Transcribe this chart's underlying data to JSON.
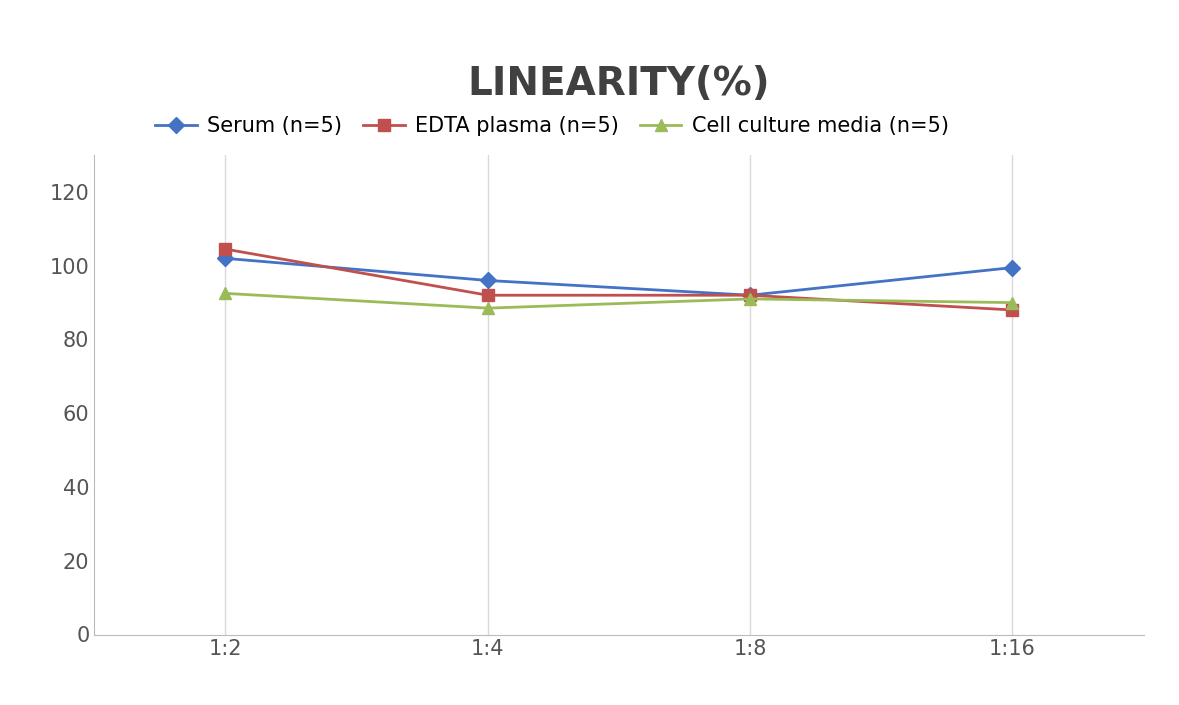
{
  "title": "LINEARITY(%)",
  "title_fontsize": 28,
  "title_fontweight": "bold",
  "x_labels": [
    "1:2",
    "1:4",
    "1:8",
    "1:16"
  ],
  "x_positions": [
    0,
    1,
    2,
    3
  ],
  "series": [
    {
      "label": "Serum (n=5)",
      "values": [
        102,
        96,
        92,
        99.5
      ],
      "color": "#4472C4",
      "marker": "D",
      "marker_size": 8,
      "linewidth": 2
    },
    {
      "label": "EDTA plasma (n=5)",
      "values": [
        104.5,
        92,
        92,
        88
      ],
      "color": "#C0504D",
      "marker": "s",
      "marker_size": 8,
      "linewidth": 2
    },
    {
      "label": "Cell culture media (n=5)",
      "values": [
        92.5,
        88.5,
        91,
        90
      ],
      "color": "#9BBB59",
      "marker": "^",
      "marker_size": 9,
      "linewidth": 2
    }
  ],
  "ylim": [
    0,
    130
  ],
  "yticks": [
    0,
    20,
    40,
    60,
    80,
    100,
    120
  ],
  "grid_color": "#D9D9D9",
  "background_color": "#FFFFFF",
  "legend_fontsize": 15,
  "tick_fontsize": 15,
  "title_color": "#404040"
}
